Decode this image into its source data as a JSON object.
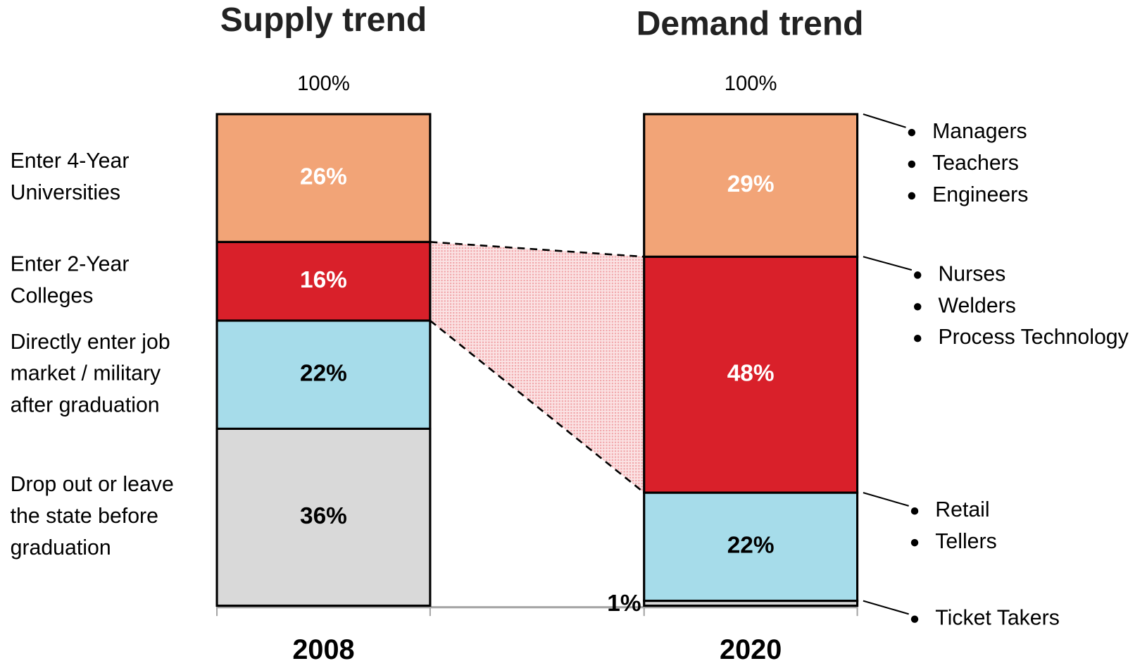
{
  "chart_data": {
    "type": "stacked-bar",
    "titles": [
      "Supply trend",
      "Demand trend"
    ],
    "categories": [
      "2008",
      "2020"
    ],
    "totals": [
      100,
      100
    ],
    "total_labels": [
      "100%",
      "100%"
    ],
    "ylim": [
      0,
      100
    ],
    "series": [
      {
        "name": "Drop out or leave the state before graduation",
        "color": "#d9d9d9",
        "label_color": "#000000",
        "values": [
          36,
          1
        ],
        "value_labels": [
          "36%",
          "1%"
        ],
        "jobs": [
          "Ticket Takers"
        ]
      },
      {
        "name": "Directly enter job market / military after graduation",
        "color": "#a6dcea",
        "label_color": "#000000",
        "values": [
          22,
          22
        ],
        "value_labels": [
          "22%",
          "22%"
        ],
        "jobs": [
          "Retail",
          "Tellers"
        ]
      },
      {
        "name": "Enter 2-Year Colleges",
        "color": "#d9202a",
        "label_color": "#ffffff",
        "values": [
          16,
          48
        ],
        "value_labels": [
          "16%",
          "48%"
        ],
        "jobs": [
          "Nurses",
          "Welders",
          "Process Technology"
        ]
      },
      {
        "name": "Enter 4-Year Universities",
        "color": "#f2a477",
        "label_color": "#ffffff",
        "values": [
          26,
          29
        ],
        "value_labels": [
          "26%",
          "29%"
        ],
        "jobs": [
          "Managers",
          "Teachers",
          "Engineers"
        ]
      }
    ]
  }
}
